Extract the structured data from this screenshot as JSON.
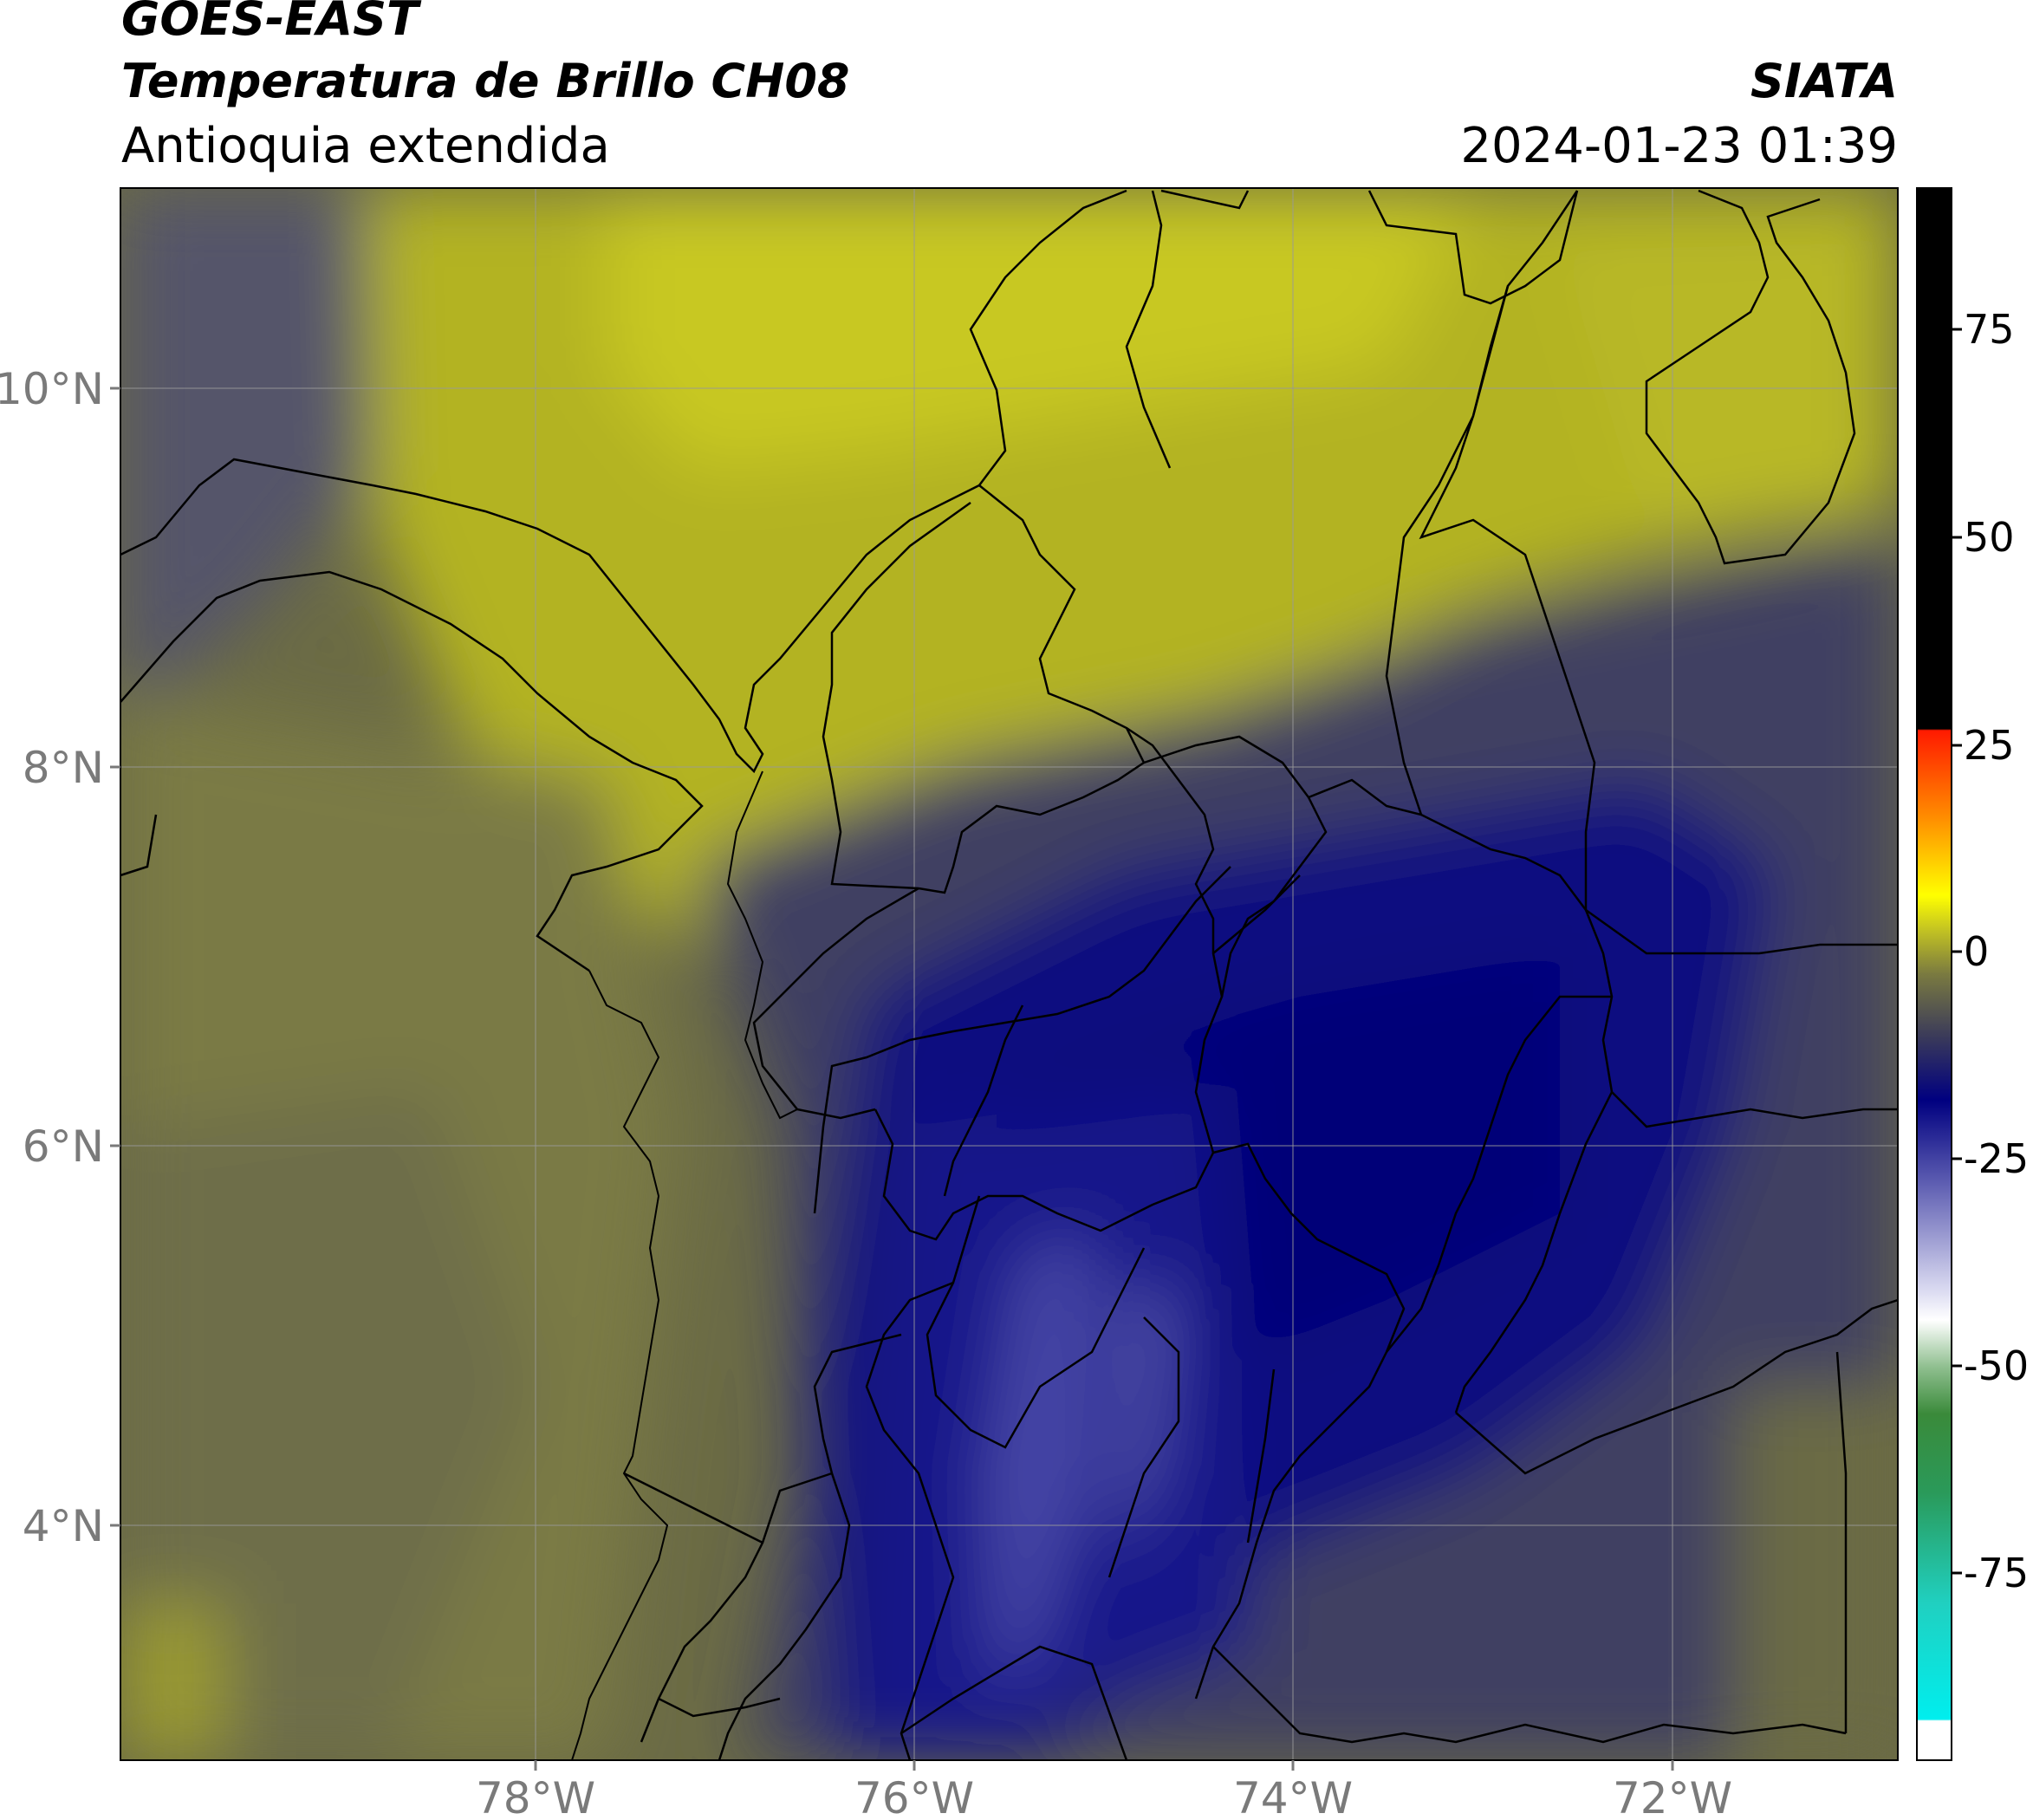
{
  "header": {
    "satellite": "GOES-EAST",
    "product": "Temperatura de Brillo CH08",
    "region": "Antioquia extendida",
    "agency": "SIATA",
    "datetime": "2024-01-23 01:39"
  },
  "map": {
    "lat_ticks": [
      "10°N",
      "8°N",
      "6°N",
      "4°N"
    ],
    "lon_ticks": [
      "78°W",
      "76°W",
      "74°W",
      "72°W"
    ]
  },
  "colorbar": {
    "tick_labels": [
      "75",
      "50",
      "25",
      "0",
      "-25",
      "-50",
      "-75"
    ],
    "colors": {
      "hot": "#000000",
      "red": "#ff1a00",
      "orange": "#ff8c00",
      "yellow": "#ffff00",
      "olive": "#9a9a2a",
      "gray": "#4a4a5a",
      "navy": "#000080",
      "lavender": "#b8b8e0",
      "white": "#ffffff",
      "green": "#3a8a3a",
      "teal": "#20c0a0",
      "cyan": "#00eeee"
    }
  }
}
